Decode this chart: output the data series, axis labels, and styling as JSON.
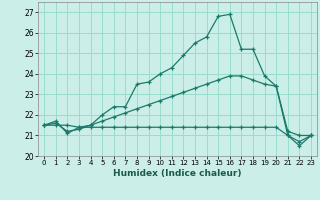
{
  "title": "",
  "xlabel": "Humidex (Indice chaleur)",
  "bg_color": "#cceee8",
  "grid_color": "#99ddcc",
  "line_color": "#1a7a6a",
  "xlim": [
    -0.5,
    23.5
  ],
  "ylim": [
    20,
    27.5
  ],
  "yticks": [
    20,
    21,
    22,
    23,
    24,
    25,
    26,
    27
  ],
  "xticks": [
    0,
    1,
    2,
    3,
    4,
    5,
    6,
    7,
    8,
    9,
    10,
    11,
    12,
    13,
    14,
    15,
    16,
    17,
    18,
    19,
    20,
    21,
    22,
    23
  ],
  "line1_x": [
    0,
    1,
    2,
    3,
    4,
    5,
    6,
    7,
    8,
    9,
    10,
    11,
    12,
    13,
    14,
    15,
    16,
    17,
    18,
    19,
    20,
    21,
    22,
    23
  ],
  "line1_y": [
    21.5,
    21.7,
    21.1,
    21.4,
    21.5,
    22.0,
    22.4,
    22.4,
    23.5,
    23.6,
    24.0,
    24.3,
    24.9,
    25.5,
    25.8,
    26.8,
    26.9,
    25.2,
    25.2,
    23.9,
    23.4,
    21.0,
    20.5,
    21.0
  ],
  "line2_x": [
    0,
    1,
    2,
    3,
    4,
    5,
    6,
    7,
    8,
    9,
    10,
    11,
    12,
    13,
    14,
    15,
    16,
    17,
    18,
    19,
    20,
    21,
    22,
    23
  ],
  "line2_y": [
    21.5,
    21.6,
    21.2,
    21.3,
    21.5,
    21.7,
    21.9,
    22.1,
    22.3,
    22.5,
    22.7,
    22.9,
    23.1,
    23.3,
    23.5,
    23.7,
    23.9,
    23.9,
    23.7,
    23.5,
    23.4,
    21.2,
    21.0,
    21.0
  ],
  "line3_x": [
    0,
    1,
    2,
    3,
    4,
    5,
    6,
    7,
    8,
    9,
    10,
    11,
    12,
    13,
    14,
    15,
    16,
    17,
    18,
    19,
    20,
    21,
    22,
    23
  ],
  "line3_y": [
    21.5,
    21.5,
    21.5,
    21.4,
    21.4,
    21.4,
    21.4,
    21.4,
    21.4,
    21.4,
    21.4,
    21.4,
    21.4,
    21.4,
    21.4,
    21.4,
    21.4,
    21.4,
    21.4,
    21.4,
    21.4,
    21.0,
    20.7,
    21.0
  ]
}
